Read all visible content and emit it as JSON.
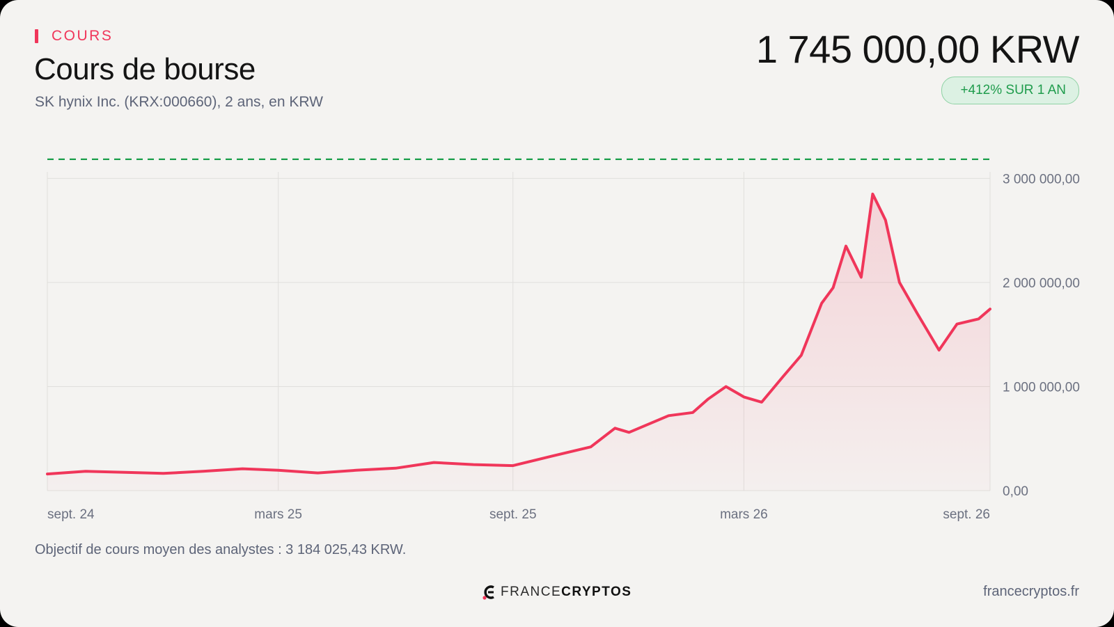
{
  "header": {
    "eyebrow": "COURS",
    "title": "Cours de bourse",
    "subtitle": "SK hynix Inc. (KRX:000660), 2 ans, en KRW",
    "price": "1 745 000,00 KRW",
    "change_badge": "+412% SUR 1 AN"
  },
  "footer": {
    "note": "Objectif de cours moyen des analystes : 3 184 025,43 KRW.",
    "logo_part1": "FRANCE",
    "logo_part2": "CRYPTOS",
    "site": "francecryptos.fr"
  },
  "colors": {
    "accent": "#f0365a",
    "target_line": "#1a9e4b",
    "badge_text": "#1f9c4c",
    "background": "#f4f3f1"
  },
  "chart_data": {
    "type": "area",
    "x_ticks": [
      "sept. 24",
      "mars 25",
      "sept. 25",
      "mars 26",
      "sept. 26"
    ],
    "y_ticks": [
      "0,00",
      "1 000 000,00",
      "2 000 000,00",
      "3 000 000,00"
    ],
    "ylim": [
      0,
      3000000
    ],
    "grid": true,
    "target_price": 3184025.43,
    "x": [
      "2024-09",
      "2024-10",
      "2024-11",
      "2024-12",
      "2025-01",
      "2025-02",
      "2025-03",
      "2025-04",
      "2025-05",
      "2025-06",
      "2025-07",
      "2025-08",
      "2025-09",
      "2025-10",
      "2025-11",
      "2025-11-20",
      "2025-12",
      "2026-01",
      "2026-01-20",
      "2026-02",
      "2026-02-15",
      "2026-03",
      "2026-03-15",
      "2026-04",
      "2026-04-15",
      "2026-05",
      "2026-05-10",
      "2026-05-20",
      "2026-06",
      "2026-06-10",
      "2026-06-20",
      "2026-07",
      "2026-07-15",
      "2026-08",
      "2026-08-15",
      "2026-09",
      "2026-09-10"
    ],
    "values": [
      160000,
      185000,
      175000,
      165000,
      185000,
      210000,
      195000,
      170000,
      195000,
      215000,
      270000,
      250000,
      240000,
      330000,
      420000,
      600000,
      560000,
      720000,
      750000,
      880000,
      1000000,
      900000,
      850000,
      1100000,
      1300000,
      1800000,
      1950000,
      2350000,
      2050000,
      2850000,
      2600000,
      2000000,
      1700000,
      1350000,
      1600000,
      1650000,
      1745000
    ]
  }
}
